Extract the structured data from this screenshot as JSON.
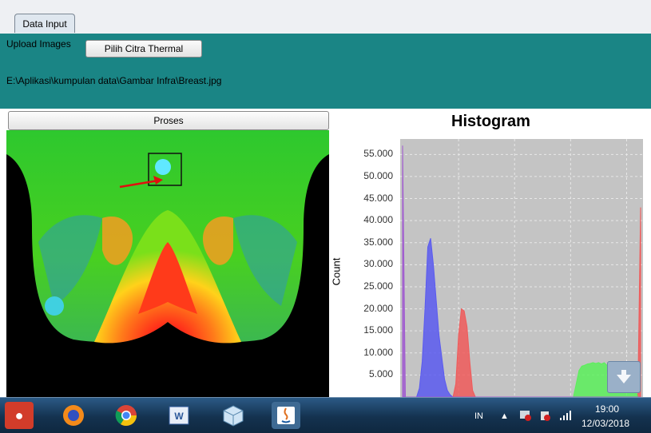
{
  "tabs": [
    {
      "label": "Data Input"
    }
  ],
  "input_panel": {
    "upload_label": "Upload Images",
    "choose_button": "Pilih Citra Thermal",
    "file_path": "E:\\Aplikasi\\kumpulan data\\Gambar Infra\\Breast.jpg"
  },
  "process_button": "Proses",
  "histogram": {
    "title": "Histogram",
    "ylabel": "Count",
    "yticks": [
      "55.000",
      "50.000",
      "45.000",
      "40.000",
      "35.000",
      "30.000",
      "25.000",
      "20.000",
      "15.000",
      "10.000",
      "5.000"
    ]
  },
  "chart_data": {
    "type": "area",
    "title": "Histogram",
    "ylabel": "Count",
    "ylim": [
      0,
      58500
    ],
    "x": [
      0,
      3,
      6,
      9,
      12,
      15,
      18,
      21,
      24,
      27,
      30,
      33,
      36,
      39,
      42,
      45,
      48,
      51,
      54,
      57,
      60,
      63,
      66,
      69,
      72,
      75,
      78,
      81,
      84,
      87,
      90,
      93,
      96,
      99,
      102,
      105,
      108,
      111,
      114,
      117,
      120,
      123,
      126,
      129,
      132,
      135,
      138,
      141,
      144,
      147,
      150,
      153,
      156,
      159,
      162,
      165,
      168,
      171,
      174,
      177,
      180,
      183,
      186,
      189,
      192,
      195,
      198,
      201,
      204,
      207,
      210,
      213,
      216,
      219,
      222,
      225,
      228,
      231,
      234,
      237,
      240,
      243,
      246,
      249,
      252,
      255
    ],
    "series": [
      {
        "color": "#5a5af0",
        "values": [
          0,
          0,
          0,
          0,
          0,
          0,
          2000,
          8000,
          20000,
          34000,
          36000,
          30000,
          22000,
          14000,
          9000,
          4000,
          1500,
          500,
          0,
          0,
          0,
          0,
          0,
          0,
          0,
          0,
          0,
          0,
          0,
          0,
          0,
          0,
          0,
          0,
          0,
          0,
          0,
          0,
          0,
          0,
          0,
          0,
          0,
          0,
          0,
          0,
          0,
          0,
          0,
          0,
          0,
          0,
          0,
          0,
          0,
          0,
          0,
          0,
          0,
          0,
          0,
          0,
          0,
          0,
          0,
          0,
          0,
          0,
          0,
          0,
          0,
          0,
          0,
          0,
          0,
          0,
          0,
          0,
          0,
          0,
          0,
          0,
          0,
          0,
          0,
          0
        ]
      },
      {
        "color": "#f05a5a",
        "values": [
          0,
          0,
          0,
          0,
          0,
          0,
          0,
          0,
          0,
          0,
          0,
          0,
          0,
          0,
          0,
          0,
          0,
          0,
          0,
          3000,
          14000,
          20000,
          19500,
          16000,
          8000,
          1500,
          0,
          0,
          0,
          0,
          0,
          0,
          0,
          0,
          0,
          0,
          0,
          0,
          0,
          0,
          0,
          0,
          0,
          0,
          0,
          0,
          0,
          0,
          0,
          0,
          0,
          0,
          0,
          0,
          0,
          0,
          0,
          0,
          0,
          0,
          0,
          0,
          0,
          0,
          0,
          0,
          0,
          0,
          0,
          0,
          0,
          0,
          0,
          0,
          0,
          0,
          0,
          0,
          0,
          0,
          0,
          0,
          0,
          0,
          0,
          43000
        ]
      },
      {
        "color": "#5af05a",
        "values": [
          0,
          0,
          0,
          0,
          0,
          0,
          0,
          0,
          0,
          0,
          0,
          0,
          0,
          0,
          0,
          0,
          0,
          0,
          0,
          0,
          0,
          0,
          0,
          0,
          0,
          0,
          0,
          0,
          0,
          0,
          0,
          0,
          0,
          0,
          0,
          0,
          0,
          0,
          0,
          0,
          0,
          0,
          0,
          0,
          0,
          0,
          0,
          0,
          0,
          0,
          0,
          0,
          0,
          0,
          0,
          0,
          0,
          0,
          0,
          0,
          0,
          0,
          3000,
          6000,
          7000,
          7200,
          7500,
          7600,
          7800,
          7600,
          7800,
          7500,
          7800,
          7200,
          7500,
          7000,
          6000,
          5000,
          4500,
          4000,
          4000,
          3500,
          3000,
          2000,
          0,
          0
        ]
      },
      {
        "color": "#a05ad0",
        "values": [
          57000,
          0,
          0,
          0,
          0,
          0,
          0,
          0,
          0,
          0,
          0,
          0,
          0,
          0,
          0,
          0,
          0,
          0,
          0,
          0,
          0,
          0,
          0,
          0,
          0,
          0,
          0,
          0,
          0,
          0,
          0,
          0,
          0,
          0,
          0,
          0,
          0,
          0,
          0,
          0,
          0,
          0,
          0,
          0,
          0,
          0,
          0,
          0,
          0,
          0,
          0,
          0,
          0,
          0,
          0,
          0,
          0,
          0,
          0,
          0,
          0,
          0,
          0,
          0,
          0,
          0,
          0,
          0,
          0,
          0,
          0,
          0,
          0,
          0,
          0,
          0,
          0,
          0,
          0,
          0,
          0,
          0,
          0,
          0,
          0,
          0
        ]
      }
    ]
  },
  "taskbar": {
    "language": "IN",
    "time": "19:00",
    "date": "12/03/2018",
    "apps": [
      {
        "icon": "paw-app-icon"
      },
      {
        "icon": "firefox-icon"
      },
      {
        "icon": "chrome-icon"
      },
      {
        "icon": "word-icon"
      },
      {
        "icon": "cube-app-icon"
      },
      {
        "icon": "java-icon"
      }
    ]
  }
}
